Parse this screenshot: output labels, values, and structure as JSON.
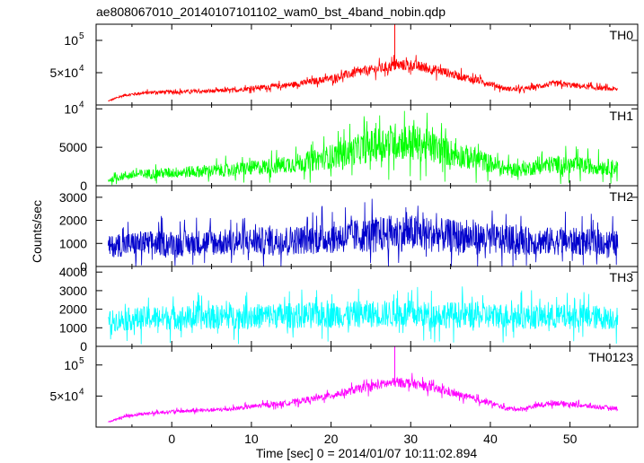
{
  "chart_data": {
    "type": "line",
    "title": "ae808067010_20140107101102_wam0_bst_4band_nobin.qdp",
    "xlabel": "Time [sec] 0 = 2014/01/07 10:11:02.894",
    "ylabel": "Counts/sec",
    "xlim": [
      -9.5,
      58.5
    ],
    "x_ticks": [
      0,
      10,
      20,
      30,
      40,
      50
    ],
    "grid": false,
    "panels": [
      {
        "name": "TH0",
        "color": "#ff0000",
        "ylim": [
          0,
          125000
        ],
        "y_ticks": [
          {
            "value": 50000,
            "label": "5×10",
            "exp": "4"
          },
          {
            "value": 100000,
            "label": "10",
            "exp": "5"
          }
        ],
        "x": [
          -8,
          -6,
          -4,
          -2,
          0,
          2,
          4,
          6,
          8,
          10,
          12,
          14,
          16,
          18,
          20,
          22,
          24,
          26,
          28,
          30,
          32,
          34,
          36,
          38,
          40,
          42,
          44,
          46,
          48,
          50,
          52,
          54,
          56
        ],
        "values": [
          6000,
          15000,
          18000,
          20000,
          20000,
          21000,
          21000,
          22000,
          23000,
          26000,
          28000,
          30000,
          33000,
          37000,
          41000,
          47000,
          52000,
          56000,
          61000,
          62000,
          57000,
          52000,
          45000,
          39000,
          33000,
          25000,
          24000,
          29000,
          33000,
          31000,
          28000,
          26000,
          24000
        ],
        "noise": 0.14,
        "spike": {
          "x": 28,
          "value": 125000
        }
      },
      {
        "name": "TH1",
        "color": "#00ff00",
        "ylim": [
          0,
          10500
        ],
        "y_ticks": [
          {
            "value": 0,
            "label": "0"
          },
          {
            "value": 5000,
            "label": "5000"
          },
          {
            "value": 10000,
            "label": "10",
            "exp": "4"
          }
        ],
        "x": [
          -8,
          -6,
          -4,
          -2,
          0,
          2,
          4,
          6,
          8,
          10,
          12,
          14,
          16,
          18,
          20,
          22,
          24,
          26,
          28,
          30,
          32,
          34,
          36,
          38,
          40,
          42,
          44,
          46,
          48,
          50,
          52,
          54,
          56
        ],
        "values": [
          700,
          1300,
          1500,
          1600,
          1700,
          1800,
          1900,
          2000,
          2100,
          2300,
          2500,
          2700,
          3000,
          3300,
          3800,
          4300,
          4900,
          5400,
          5800,
          5700,
          5200,
          4600,
          4000,
          3500,
          2900,
          2200,
          2100,
          2500,
          2800,
          2700,
          2600,
          2500,
          2400
        ],
        "noise": 0.42
      },
      {
        "name": "TH2",
        "color": "#0000cc",
        "ylim": [
          0,
          3500
        ],
        "y_ticks": [
          {
            "value": 0,
            "label": "0"
          },
          {
            "value": 1000,
            "label": "1000"
          },
          {
            "value": 2000,
            "label": "2000"
          },
          {
            "value": 3000,
            "label": "3000"
          }
        ],
        "x": [
          -8,
          -6,
          -4,
          -2,
          0,
          2,
          4,
          6,
          8,
          10,
          12,
          14,
          16,
          18,
          20,
          22,
          24,
          26,
          28,
          30,
          32,
          34,
          36,
          38,
          40,
          42,
          44,
          46,
          48,
          50,
          52,
          54,
          56
        ],
        "values": [
          850,
          950,
          1000,
          1000,
          1000,
          1000,
          1050,
          1050,
          1050,
          1100,
          1100,
          1150,
          1150,
          1200,
          1250,
          1300,
          1350,
          1400,
          1450,
          1450,
          1400,
          1350,
          1300,
          1250,
          1200,
          1150,
          1100,
          1100,
          1100,
          1100,
          1050,
          1050,
          1000
        ],
        "noise": 0.55
      },
      {
        "name": "TH3",
        "color": "#00ffff",
        "ylim": [
          0,
          4300
        ],
        "y_ticks": [
          {
            "value": 0,
            "label": "0"
          },
          {
            "value": 1000,
            "label": "1000"
          },
          {
            "value": 2000,
            "label": "2000"
          },
          {
            "value": 3000,
            "label": "3000"
          },
          {
            "value": 4000,
            "label": "4000"
          }
        ],
        "x": [
          -8,
          -6,
          -4,
          -2,
          0,
          2,
          4,
          6,
          8,
          10,
          12,
          14,
          16,
          18,
          20,
          22,
          24,
          26,
          28,
          30,
          32,
          34,
          36,
          38,
          40,
          42,
          44,
          46,
          48,
          50,
          52,
          54,
          56
        ],
        "values": [
          1350,
          1450,
          1500,
          1550,
          1550,
          1550,
          1550,
          1600,
          1600,
          1600,
          1650,
          1650,
          1650,
          1700,
          1700,
          1700,
          1750,
          1750,
          1750,
          1750,
          1700,
          1700,
          1700,
          1650,
          1650,
          1650,
          1600,
          1600,
          1600,
          1600,
          1600,
          1550,
          1550
        ],
        "noise": 0.42
      },
      {
        "name": "TH0123",
        "color": "#ff00ff",
        "ylim": [
          0,
          130000
        ],
        "y_ticks": [
          {
            "value": 50000,
            "label": "5×10",
            "exp": "4"
          },
          {
            "value": 100000,
            "label": "10",
            "exp": "5"
          }
        ],
        "x": [
          -8,
          -6,
          -4,
          -2,
          0,
          2,
          4,
          6,
          8,
          10,
          12,
          14,
          16,
          18,
          20,
          22,
          24,
          26,
          28,
          30,
          32,
          34,
          36,
          38,
          40,
          42,
          44,
          46,
          48,
          50,
          52,
          54,
          56
        ],
        "values": [
          8000,
          17000,
          21000,
          23000,
          25000,
          26000,
          27000,
          28000,
          30000,
          33000,
          36000,
          38000,
          42000,
          46000,
          51000,
          57000,
          63000,
          68000,
          72000,
          71000,
          65000,
          59000,
          52000,
          45000,
          39000,
          30000,
          29000,
          35000,
          39000,
          37000,
          34000,
          32000,
          30000
        ],
        "noise": 0.11,
        "spike": {
          "x": 28,
          "value": 130000
        }
      }
    ]
  }
}
